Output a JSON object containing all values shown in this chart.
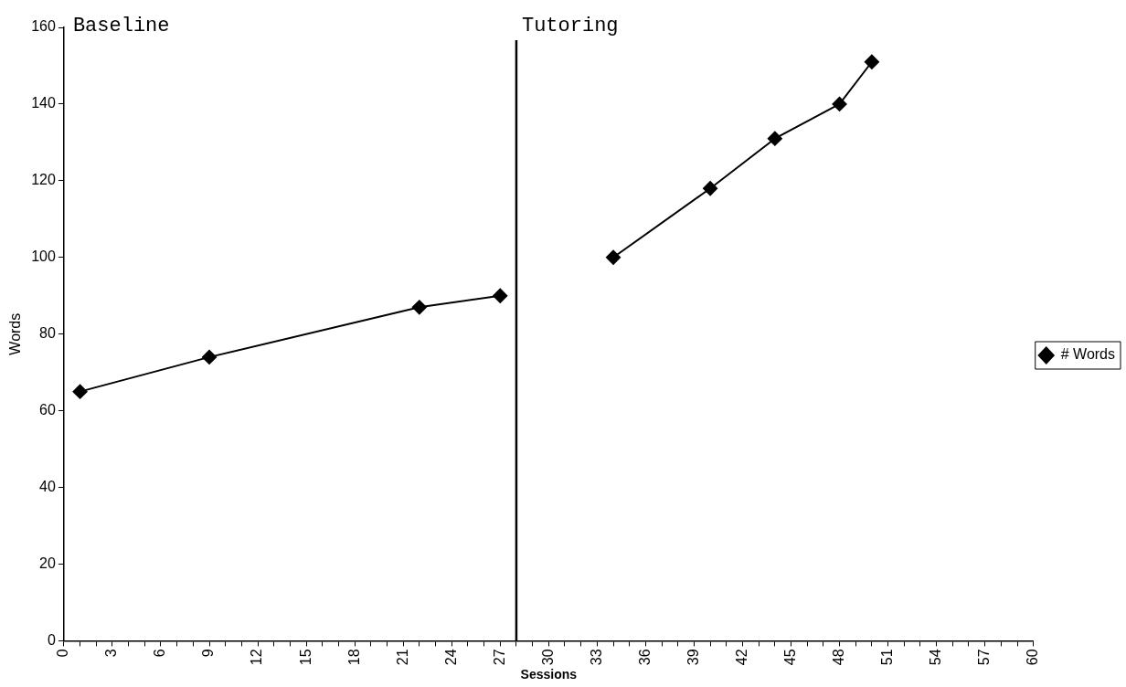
{
  "chart_data": {
    "type": "line",
    "xlabel": "Sessions",
    "ylabel": "Words",
    "series": [
      {
        "name": "# Words",
        "color": "#000000",
        "x": [
          1,
          9,
          22,
          27,
          28,
          34,
          40,
          44,
          48,
          50
        ],
        "values": [
          65,
          74,
          87,
          90,
          null,
          100,
          118,
          131,
          140,
          151
        ]
      }
    ],
    "xlim": [
      0,
      60
    ],
    "xticks": [
      0,
      {
        "value": 1,
        "label": null
      },
      {
        "value": 2,
        "label": null
      },
      3,
      {
        "value": 4,
        "label": null
      },
      {
        "value": 5,
        "label": null
      },
      6,
      {
        "value": 7,
        "label": null
      },
      {
        "value": 8,
        "label": null
      },
      9,
      {
        "value": 10,
        "label": null
      },
      {
        "value": 11,
        "label": null
      },
      12,
      {
        "value": 13,
        "label": null
      },
      {
        "value": 14,
        "label": null
      },
      15,
      {
        "value": 16,
        "label": null
      },
      {
        "value": 17,
        "label": null
      },
      18,
      {
        "value": 19,
        "label": null
      },
      {
        "value": 20,
        "label": null
      },
      21,
      {
        "value": 22,
        "label": null
      },
      {
        "value": 23,
        "label": null
      },
      24,
      {
        "value": 25,
        "label": null
      },
      {
        "value": 26,
        "label": null
      },
      27,
      {
        "value": 28,
        "label": null
      },
      {
        "value": 29,
        "label": null
      },
      30,
      {
        "value": 31,
        "label": null
      },
      {
        "value": 32,
        "label": null
      },
      33,
      {
        "value": 34,
        "label": null
      },
      {
        "value": 35,
        "label": null
      },
      36,
      {
        "value": 37,
        "label": null
      },
      {
        "value": 38,
        "label": null
      },
      39,
      {
        "value": 40,
        "label": null
      },
      {
        "value": 41,
        "label": null
      },
      42,
      {
        "value": 43,
        "label": null
      },
      {
        "value": 44,
        "label": null
      },
      45,
      {
        "value": 46,
        "label": null
      },
      {
        "value": 47,
        "label": null
      },
      48,
      {
        "value": 49,
        "label": null
      },
      {
        "value": 50,
        "label": null
      },
      51,
      {
        "value": 52,
        "label": null
      },
      {
        "value": 53,
        "label": null
      },
      54,
      {
        "value": 55,
        "label": null
      },
      {
        "value": 56,
        "label": null
      },
      57,
      {
        "value": 58,
        "label": null
      },
      {
        "value": 59,
        "label": null
      },
      60
    ],
    "ylim": [
      0,
      160
    ],
    "yticks": [
      0,
      20,
      40,
      60,
      80,
      100,
      120,
      140,
      160
    ],
    "ref_lines": [
      {
        "axis": "x",
        "value": 28,
        "color": "#000000"
      }
    ],
    "annotations": [
      "Baseline",
      "Tutoring"
    ],
    "marker": "diamond",
    "line_style": "solid",
    "grid": false,
    "legend": "right"
  }
}
